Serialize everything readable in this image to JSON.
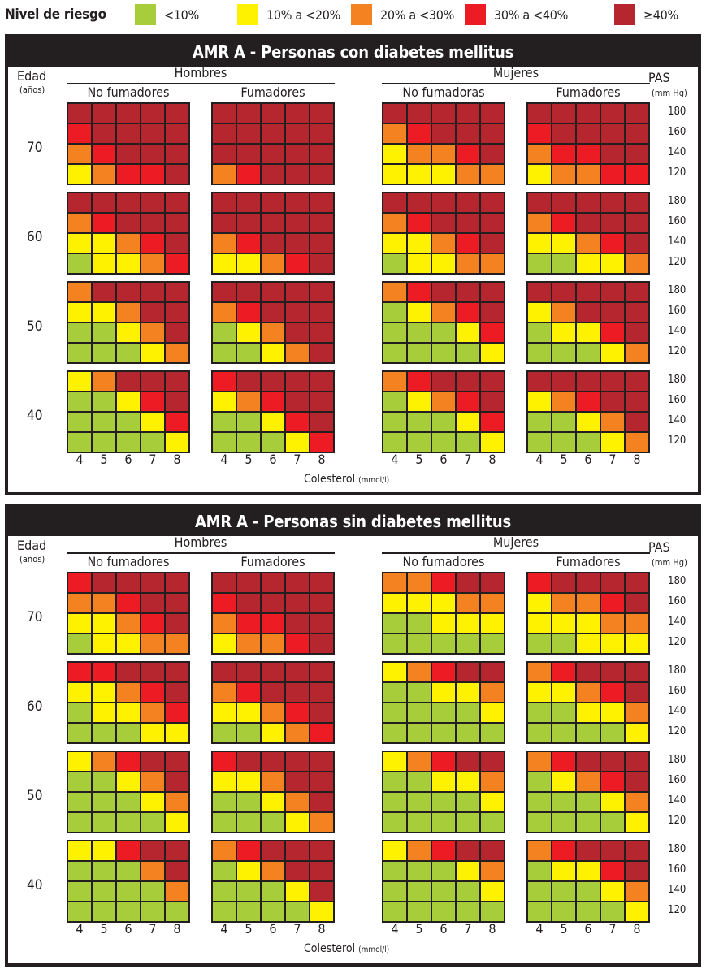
{
  "legend": {
    "title": "Nivel de riesgo",
    "items": [
      {
        "label": "<10%",
        "color": "#a8cd3a"
      },
      {
        "label": "10% a <20%",
        "color": "#fff200"
      },
      {
        "label": "20% a <30%",
        "color": "#f58220"
      },
      {
        "label": "30% a <40%",
        "color": "#ed1c24"
      },
      {
        "label": "≥40%",
        "color": "#b5262e"
      }
    ]
  },
  "labels": {
    "edad": "Edad",
    "anos": "(años)",
    "pas": "PAS",
    "pas_unit": "(mm Hg)",
    "colesterol": "Colesterol",
    "colesterol_unit": "(mmol/l)",
    "hombres": "Hombres",
    "mujeres": "Mujeres"
  },
  "chart_data": {
    "type": "heatmap",
    "encoding": "risk level index 0-4 mapping to legend items; rows ordered PAS 180,160,140,120; columns cholesterol 4..8",
    "cholesterol_ticks": [
      "4",
      "5",
      "6",
      "7",
      "8"
    ],
    "pas_ticks": [
      "180",
      "160",
      "140",
      "120"
    ],
    "ages": [
      "70",
      "60",
      "50",
      "40"
    ],
    "panels": [
      {
        "title": "AMR A - Personas con diabetes mellitus",
        "groups": [
          {
            "sex": "Hombres",
            "smoking": "No fumadores"
          },
          {
            "sex": "Hombres",
            "smoking": "Fumadores"
          },
          {
            "sex": "Mujeres",
            "smoking": "No fumadoras"
          },
          {
            "sex": "Mujeres",
            "smoking": "Fumadores"
          }
        ],
        "grids": [
          [
            [
              [
                4,
                4,
                4,
                4,
                4
              ],
              [
                3,
                4,
                4,
                4,
                4
              ],
              [
                2,
                3,
                4,
                4,
                4
              ],
              [
                1,
                2,
                3,
                3,
                4
              ]
            ],
            [
              [
                4,
                4,
                4,
                4,
                4
              ],
              [
                4,
                4,
                4,
                4,
                4
              ],
              [
                4,
                4,
                4,
                4,
                4
              ],
              [
                2,
                3,
                4,
                4,
                4
              ]
            ],
            [
              [
                4,
                4,
                4,
                4,
                4
              ],
              [
                2,
                3,
                4,
                4,
                4
              ],
              [
                1,
                2,
                2,
                3,
                4
              ],
              [
                1,
                1,
                1,
                2,
                2
              ]
            ],
            [
              [
                4,
                4,
                4,
                4,
                4
              ],
              [
                3,
                4,
                4,
                4,
                4
              ],
              [
                2,
                3,
                3,
                4,
                4
              ],
              [
                1,
                2,
                2,
                3,
                3
              ]
            ]
          ],
          [
            [
              [
                4,
                4,
                4,
                4,
                4
              ],
              [
                2,
                3,
                4,
                4,
                4
              ],
              [
                1,
                1,
                2,
                3,
                4
              ],
              [
                0,
                1,
                1,
                2,
                3
              ]
            ],
            [
              [
                4,
                4,
                4,
                4,
                4
              ],
              [
                4,
                4,
                4,
                4,
                4
              ],
              [
                2,
                3,
                4,
                4,
                4
              ],
              [
                1,
                1,
                2,
                3,
                4
              ]
            ],
            [
              [
                4,
                4,
                4,
                4,
                4
              ],
              [
                2,
                3,
                4,
                4,
                4
              ],
              [
                1,
                1,
                2,
                3,
                4
              ],
              [
                0,
                1,
                1,
                2,
                2
              ]
            ],
            [
              [
                4,
                4,
                4,
                4,
                4
              ],
              [
                2,
                3,
                4,
                4,
                4
              ],
              [
                1,
                1,
                2,
                3,
                4
              ],
              [
                0,
                0,
                1,
                1,
                2
              ]
            ]
          ],
          [
            [
              [
                2,
                4,
                4,
                4,
                4
              ],
              [
                1,
                1,
                2,
                4,
                4
              ],
              [
                0,
                0,
                1,
                2,
                4
              ],
              [
                0,
                0,
                0,
                1,
                2
              ]
            ],
            [
              [
                4,
                4,
                4,
                4,
                4
              ],
              [
                2,
                3,
                4,
                4,
                4
              ],
              [
                0,
                1,
                2,
                4,
                4
              ],
              [
                0,
                0,
                1,
                2,
                4
              ]
            ],
            [
              [
                2,
                3,
                4,
                4,
                4
              ],
              [
                0,
                1,
                2,
                3,
                4
              ],
              [
                0,
                0,
                0,
                1,
                3
              ],
              [
                0,
                0,
                0,
                0,
                1
              ]
            ],
            [
              [
                4,
                4,
                4,
                4,
                4
              ],
              [
                1,
                2,
                4,
                4,
                4
              ],
              [
                0,
                1,
                1,
                3,
                4
              ],
              [
                0,
                0,
                0,
                1,
                2
              ]
            ]
          ],
          [
            [
              [
                1,
                2,
                4,
                4,
                4
              ],
              [
                0,
                0,
                1,
                3,
                4
              ],
              [
                0,
                0,
                0,
                1,
                3
              ],
              [
                0,
                0,
                0,
                0,
                1
              ]
            ],
            [
              [
                3,
                4,
                4,
                4,
                4
              ],
              [
                1,
                2,
                3,
                4,
                4
              ],
              [
                0,
                0,
                1,
                3,
                4
              ],
              [
                0,
                0,
                0,
                1,
                3
              ]
            ],
            [
              [
                2,
                3,
                4,
                4,
                4
              ],
              [
                0,
                1,
                2,
                3,
                4
              ],
              [
                0,
                0,
                0,
                1,
                3
              ],
              [
                0,
                0,
                0,
                0,
                1
              ]
            ],
            [
              [
                4,
                4,
                4,
                4,
                4
              ],
              [
                1,
                2,
                3,
                4,
                4
              ],
              [
                0,
                0,
                1,
                2,
                4
              ],
              [
                0,
                0,
                0,
                1,
                2
              ]
            ]
          ]
        ]
      },
      {
        "title": "AMR A - Personas sin diabetes mellitus",
        "groups": [
          {
            "sex": "Hombres",
            "smoking": "No fumadores"
          },
          {
            "sex": "Hombres",
            "smoking": "Fumadores"
          },
          {
            "sex": "Mujeres",
            "smoking": "No fumadores"
          },
          {
            "sex": "Mujeres",
            "smoking": "Fumadores"
          }
        ],
        "grids": [
          [
            [
              [
                3,
                4,
                4,
                4,
                4
              ],
              [
                2,
                2,
                3,
                4,
                4
              ],
              [
                1,
                1,
                2,
                3,
                4
              ],
              [
                0,
                1,
                1,
                2,
                2
              ]
            ],
            [
              [
                4,
                4,
                4,
                4,
                4
              ],
              [
                3,
                4,
                4,
                4,
                4
              ],
              [
                2,
                3,
                3,
                4,
                4
              ],
              [
                1,
                2,
                2,
                3,
                4
              ]
            ],
            [
              [
                2,
                2,
                3,
                4,
                4
              ],
              [
                1,
                1,
                1,
                2,
                2
              ],
              [
                0,
                0,
                1,
                1,
                1
              ],
              [
                0,
                0,
                0,
                0,
                0
              ]
            ],
            [
              [
                3,
                4,
                4,
                4,
                4
              ],
              [
                1,
                2,
                2,
                3,
                4
              ],
              [
                1,
                1,
                1,
                2,
                2
              ],
              [
                0,
                0,
                1,
                1,
                1
              ]
            ]
          ],
          [
            [
              [
                3,
                3,
                4,
                4,
                4
              ],
              [
                1,
                1,
                2,
                3,
                4
              ],
              [
                0,
                1,
                1,
                2,
                3
              ],
              [
                0,
                0,
                0,
                1,
                1
              ]
            ],
            [
              [
                4,
                4,
                4,
                4,
                4
              ],
              [
                2,
                3,
                4,
                4,
                4
              ],
              [
                1,
                1,
                2,
                3,
                4
              ],
              [
                0,
                0,
                1,
                2,
                3
              ]
            ],
            [
              [
                1,
                2,
                3,
                4,
                4
              ],
              [
                0,
                0,
                1,
                1,
                2
              ],
              [
                0,
                0,
                0,
                0,
                1
              ],
              [
                0,
                0,
                0,
                0,
                0
              ]
            ],
            [
              [
                2,
                3,
                4,
                4,
                4
              ],
              [
                1,
                1,
                2,
                3,
                4
              ],
              [
                0,
                0,
                1,
                1,
                2
              ],
              [
                0,
                0,
                0,
                0,
                1
              ]
            ]
          ],
          [
            [
              [
                1,
                2,
                3,
                4,
                4
              ],
              [
                0,
                0,
                1,
                2,
                4
              ],
              [
                0,
                0,
                0,
                1,
                2
              ],
              [
                0,
                0,
                0,
                0,
                1
              ]
            ],
            [
              [
                3,
                4,
                4,
                4,
                4
              ],
              [
                1,
                1,
                2,
                4,
                4
              ],
              [
                0,
                0,
                1,
                2,
                4
              ],
              [
                0,
                0,
                0,
                1,
                2
              ]
            ],
            [
              [
                1,
                2,
                3,
                4,
                4
              ],
              [
                0,
                0,
                1,
                1,
                2
              ],
              [
                0,
                0,
                0,
                0,
                1
              ],
              [
                0,
                0,
                0,
                0,
                0
              ]
            ],
            [
              [
                2,
                3,
                4,
                4,
                4
              ],
              [
                0,
                1,
                2,
                3,
                4
              ],
              [
                0,
                0,
                0,
                1,
                2
              ],
              [
                0,
                0,
                0,
                0,
                1
              ]
            ]
          ],
          [
            [
              [
                1,
                1,
                3,
                4,
                4
              ],
              [
                0,
                0,
                0,
                2,
                4
              ],
              [
                0,
                0,
                0,
                0,
                2
              ],
              [
                0,
                0,
                0,
                0,
                0
              ]
            ],
            [
              [
                2,
                3,
                4,
                4,
                4
              ],
              [
                0,
                1,
                2,
                4,
                4
              ],
              [
                0,
                0,
                0,
                1,
                4
              ],
              [
                0,
                0,
                0,
                0,
                1
              ]
            ],
            [
              [
                1,
                2,
                3,
                4,
                4
              ],
              [
                0,
                0,
                0,
                1,
                2
              ],
              [
                0,
                0,
                0,
                0,
                1
              ],
              [
                0,
                0,
                0,
                0,
                0
              ]
            ],
            [
              [
                2,
                3,
                4,
                4,
                4
              ],
              [
                0,
                1,
                1,
                3,
                4
              ],
              [
                0,
                0,
                0,
                1,
                2
              ],
              [
                0,
                0,
                0,
                0,
                1
              ]
            ]
          ]
        ]
      }
    ]
  }
}
